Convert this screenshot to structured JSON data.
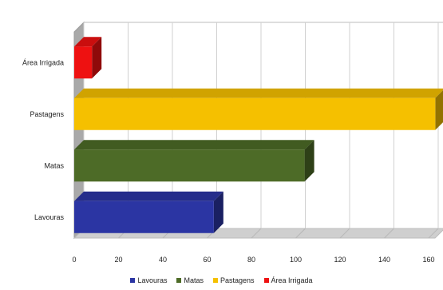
{
  "chart_data": {
    "type": "bar",
    "orientation": "horizontal",
    "categories": [
      "Lavouras",
      "Matas",
      "Pastagens",
      "Área Irrigada"
    ],
    "values": [
      63,
      104,
      163,
      8
    ],
    "colors": [
      "#2b35a3",
      "#4d6b27",
      "#f5c000",
      "#ee1111"
    ],
    "xlim": [
      0,
      160
    ],
    "xticks": [
      "0",
      "20",
      "40",
      "60",
      "80",
      "100",
      "120",
      "140",
      "160"
    ],
    "title": "",
    "xlabel": "",
    "ylabel": "",
    "grid": true,
    "style": "3d",
    "legend_position": "bottom",
    "legend": [
      "Lavouras",
      "Matas",
      "Pastagens",
      "Área Irrigada"
    ]
  }
}
